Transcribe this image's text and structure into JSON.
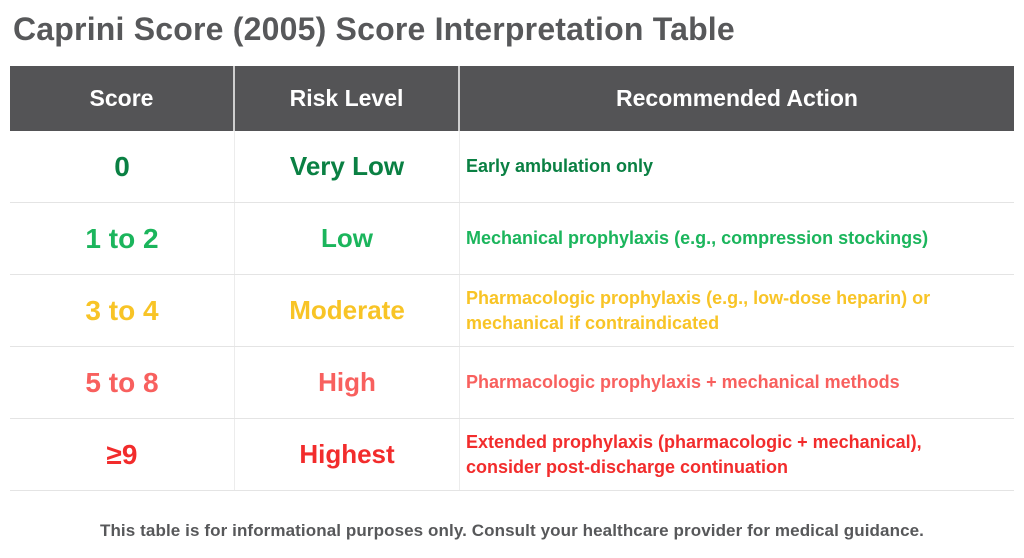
{
  "title": "Caprini Score (2005) Score Interpretation Table",
  "table": {
    "columns": [
      "Score",
      "Risk Level",
      "Recommended Action"
    ],
    "rows": [
      {
        "score": "0",
        "risk": "Very Low",
        "action": "Early ambulation only",
        "color": "#0a8043"
      },
      {
        "score": "1 to 2",
        "risk": "Low",
        "action": "Mechanical prophylaxis (e.g., compression stockings)",
        "color": "#1bb55c"
      },
      {
        "score": "3 to 4",
        "risk": "Moderate",
        "action": "Pharmacologic prophylaxis (e.g., low-dose heparin) or mechanical if contraindicated",
        "color": "#f8c426"
      },
      {
        "score": "5 to 8",
        "risk": "High",
        "action": "Pharmacologic prophylaxis + mechanical methods",
        "color": "#f8605e"
      },
      {
        "score": "≥9",
        "risk": "Highest",
        "action": "Extended prophylaxis (pharmacologic + mechanical), consider post-discharge continuation",
        "color": "#f22c2c"
      }
    ]
  },
  "footer": "This table is for informational purposes only. Consult your healthcare provider for medical guidance.",
  "colors": {
    "header_background": "#545456",
    "header_text": "#ffffff",
    "title_text": "#57585a",
    "footer_text": "#57585a",
    "row_divider": "#e4e4e4"
  }
}
